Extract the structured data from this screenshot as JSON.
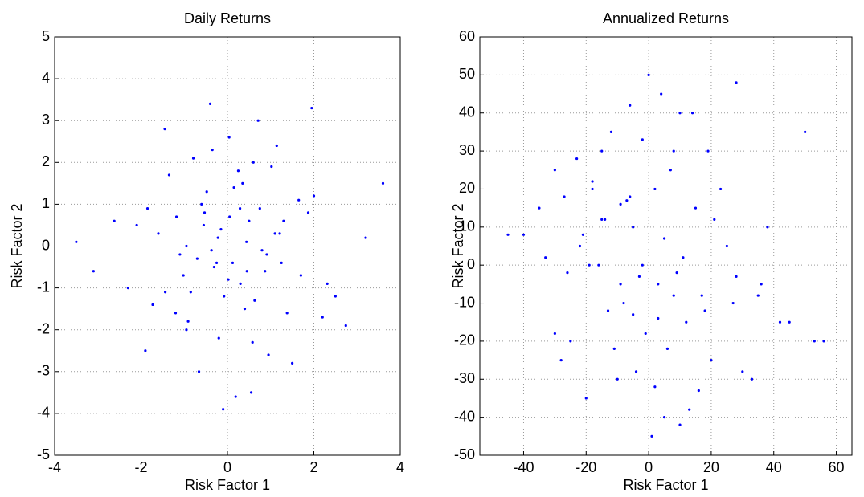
{
  "chart_data": [
    {
      "type": "scatter",
      "title": "Daily Returns",
      "xlabel": "Risk Factor 1",
      "ylabel": "Risk Factor 2",
      "color": "#0000ff",
      "grid": true,
      "xlim": [
        -4,
        4
      ],
      "ylim": [
        -5,
        5
      ],
      "xticks": [
        -4,
        -2,
        0,
        2,
        4
      ],
      "yticks": [
        -5,
        -4,
        -3,
        -2,
        -1,
        0,
        1,
        2,
        3,
        4,
        5
      ],
      "x": [
        0.12,
        -0.53,
        1.21,
        -1.44,
        0.35,
        0.87,
        -0.22,
        -0.91,
        1.65,
        -2.1,
        0.04,
        0.58,
        -0.37,
        1.02,
        -1.18,
        2.31,
        -0.66,
        0.29,
        -1.73,
        0.91,
        0.44,
        -0.08,
        1.38,
        -0.79,
        -2.62,
        0.71,
        -0.15,
        1.87,
        -1.02,
        0.19,
        -0.48,
        2.74,
        -0.31,
        0.63,
        -1.35,
        1.14,
        0.02,
        -0.95,
        0.5,
        -1.9,
        3.2,
        -0.7,
        0.25,
        1.5,
        -0.6,
        -3.1,
        0.8,
        -0.2,
        1.1,
        -1.2,
        0.4,
        2.0,
        -0.4,
        -1.6,
        0.95,
        0.15,
        -0.85,
        1.7,
        -2.3,
        0.6,
        3.6,
        -0.1,
        1.3,
        -1.1,
        0.3,
        -0.55,
        2.5,
        -1.45,
        0.75,
        0.05,
        -0.25,
        1.95,
        -0.95,
        0.55,
        -3.5,
        1.25,
        -0.35,
        0.45,
        -1.85,
        2.2
      ],
      "values": [
        -0.4,
        0.8,
        0.3,
        -1.1,
        1.5,
        -0.6,
        0.2,
        -1.8,
        1.1,
        0.5,
        2.6,
        -2.3,
        -0.1,
        1.9,
        0.7,
        -0.9,
        -3.0,
        0.9,
        -1.4,
        -0.2,
        0.1,
        -1.2,
        -1.6,
        2.1,
        0.6,
        3.0,
        0.4,
        0.8,
        -0.7,
        -3.6,
        1.3,
        -1.9,
        -0.5,
        -1.3,
        1.7,
        2.4,
        -0.8,
        0.0,
        0.6,
        -2.5,
        0.2,
        -0.3,
        1.8,
        -2.8,
        1.0,
        -0.6,
        -0.1,
        -2.2,
        0.3,
        -1.6,
        -1.5,
        1.2,
        3.4,
        0.3,
        -2.6,
        1.4,
        -1.1,
        -0.7,
        -1.0,
        2.0,
        1.5,
        -3.9,
        0.6,
        -0.2,
        -0.9,
        0.5,
        -1.2,
        2.8,
        0.9,
        0.7,
        -0.4,
        3.3,
        -2.0,
        -3.5,
        0.1,
        -0.4,
        2.3,
        -0.6,
        0.9,
        -1.7
      ]
    },
    {
      "type": "scatter",
      "title": "Annualized Returns",
      "xlabel": "Risk Factor 1",
      "ylabel": "Risk Factor 2",
      "color": "#0000ff",
      "grid": true,
      "xlim": [
        -54,
        65
      ],
      "ylim": [
        -50,
        60
      ],
      "xticks": [
        -40,
        -20,
        0,
        20,
        40,
        60
      ],
      "yticks": [
        -50,
        -40,
        -30,
        -20,
        -10,
        0,
        10,
        20,
        30,
        40,
        50,
        60
      ],
      "x": [
        -5,
        12,
        -18,
        3,
        25,
        -10,
        8,
        -25,
        15,
        -2,
        0,
        -8,
        20,
        -30,
        5,
        35,
        -15,
        10,
        -45,
        28,
        -20,
        2,
        18,
        -12,
        42,
        -3,
        6,
        -22,
        30,
        -35,
        50,
        -6,
        13,
        -16,
        4,
        23,
        -28,
        9,
        -1,
        38,
        -40,
        7,
        -9,
        16,
        -23,
        1,
        27,
        -14,
        53,
        -4,
        11,
        -26,
        19,
        -7,
        33,
        -18,
        3,
        -11,
        45,
        -33,
        14,
        -2,
        -19,
        8,
        -30,
        21,
        -6,
        28,
        -13,
        5,
        56,
        -15,
        2,
        -27,
        10,
        -5,
        36,
        -21,
        17,
        -9
      ],
      "values": [
        10,
        -15,
        20,
        -5,
        5,
        -30,
        30,
        -20,
        15,
        0,
        50,
        -10,
        -25,
        25,
        -40,
        -8,
        12,
        40,
        8,
        48,
        -35,
        20,
        -12,
        35,
        -15,
        -3,
        -22,
        5,
        -28,
        15,
        35,
        18,
        -38,
        0,
        45,
        20,
        -25,
        -2,
        -18,
        10,
        8,
        25,
        -5,
        -33,
        28,
        -45,
        -10,
        12,
        -20,
        -28,
        2,
        -2,
        30,
        17,
        -30,
        22,
        -14,
        -22,
        -15,
        2,
        40,
        33,
        0,
        -8,
        -18,
        12,
        42,
        -3,
        -12,
        7,
        -20,
        30,
        -32,
        18,
        -42,
        -13,
        -5,
        8,
        -8,
        16
      ]
    }
  ]
}
